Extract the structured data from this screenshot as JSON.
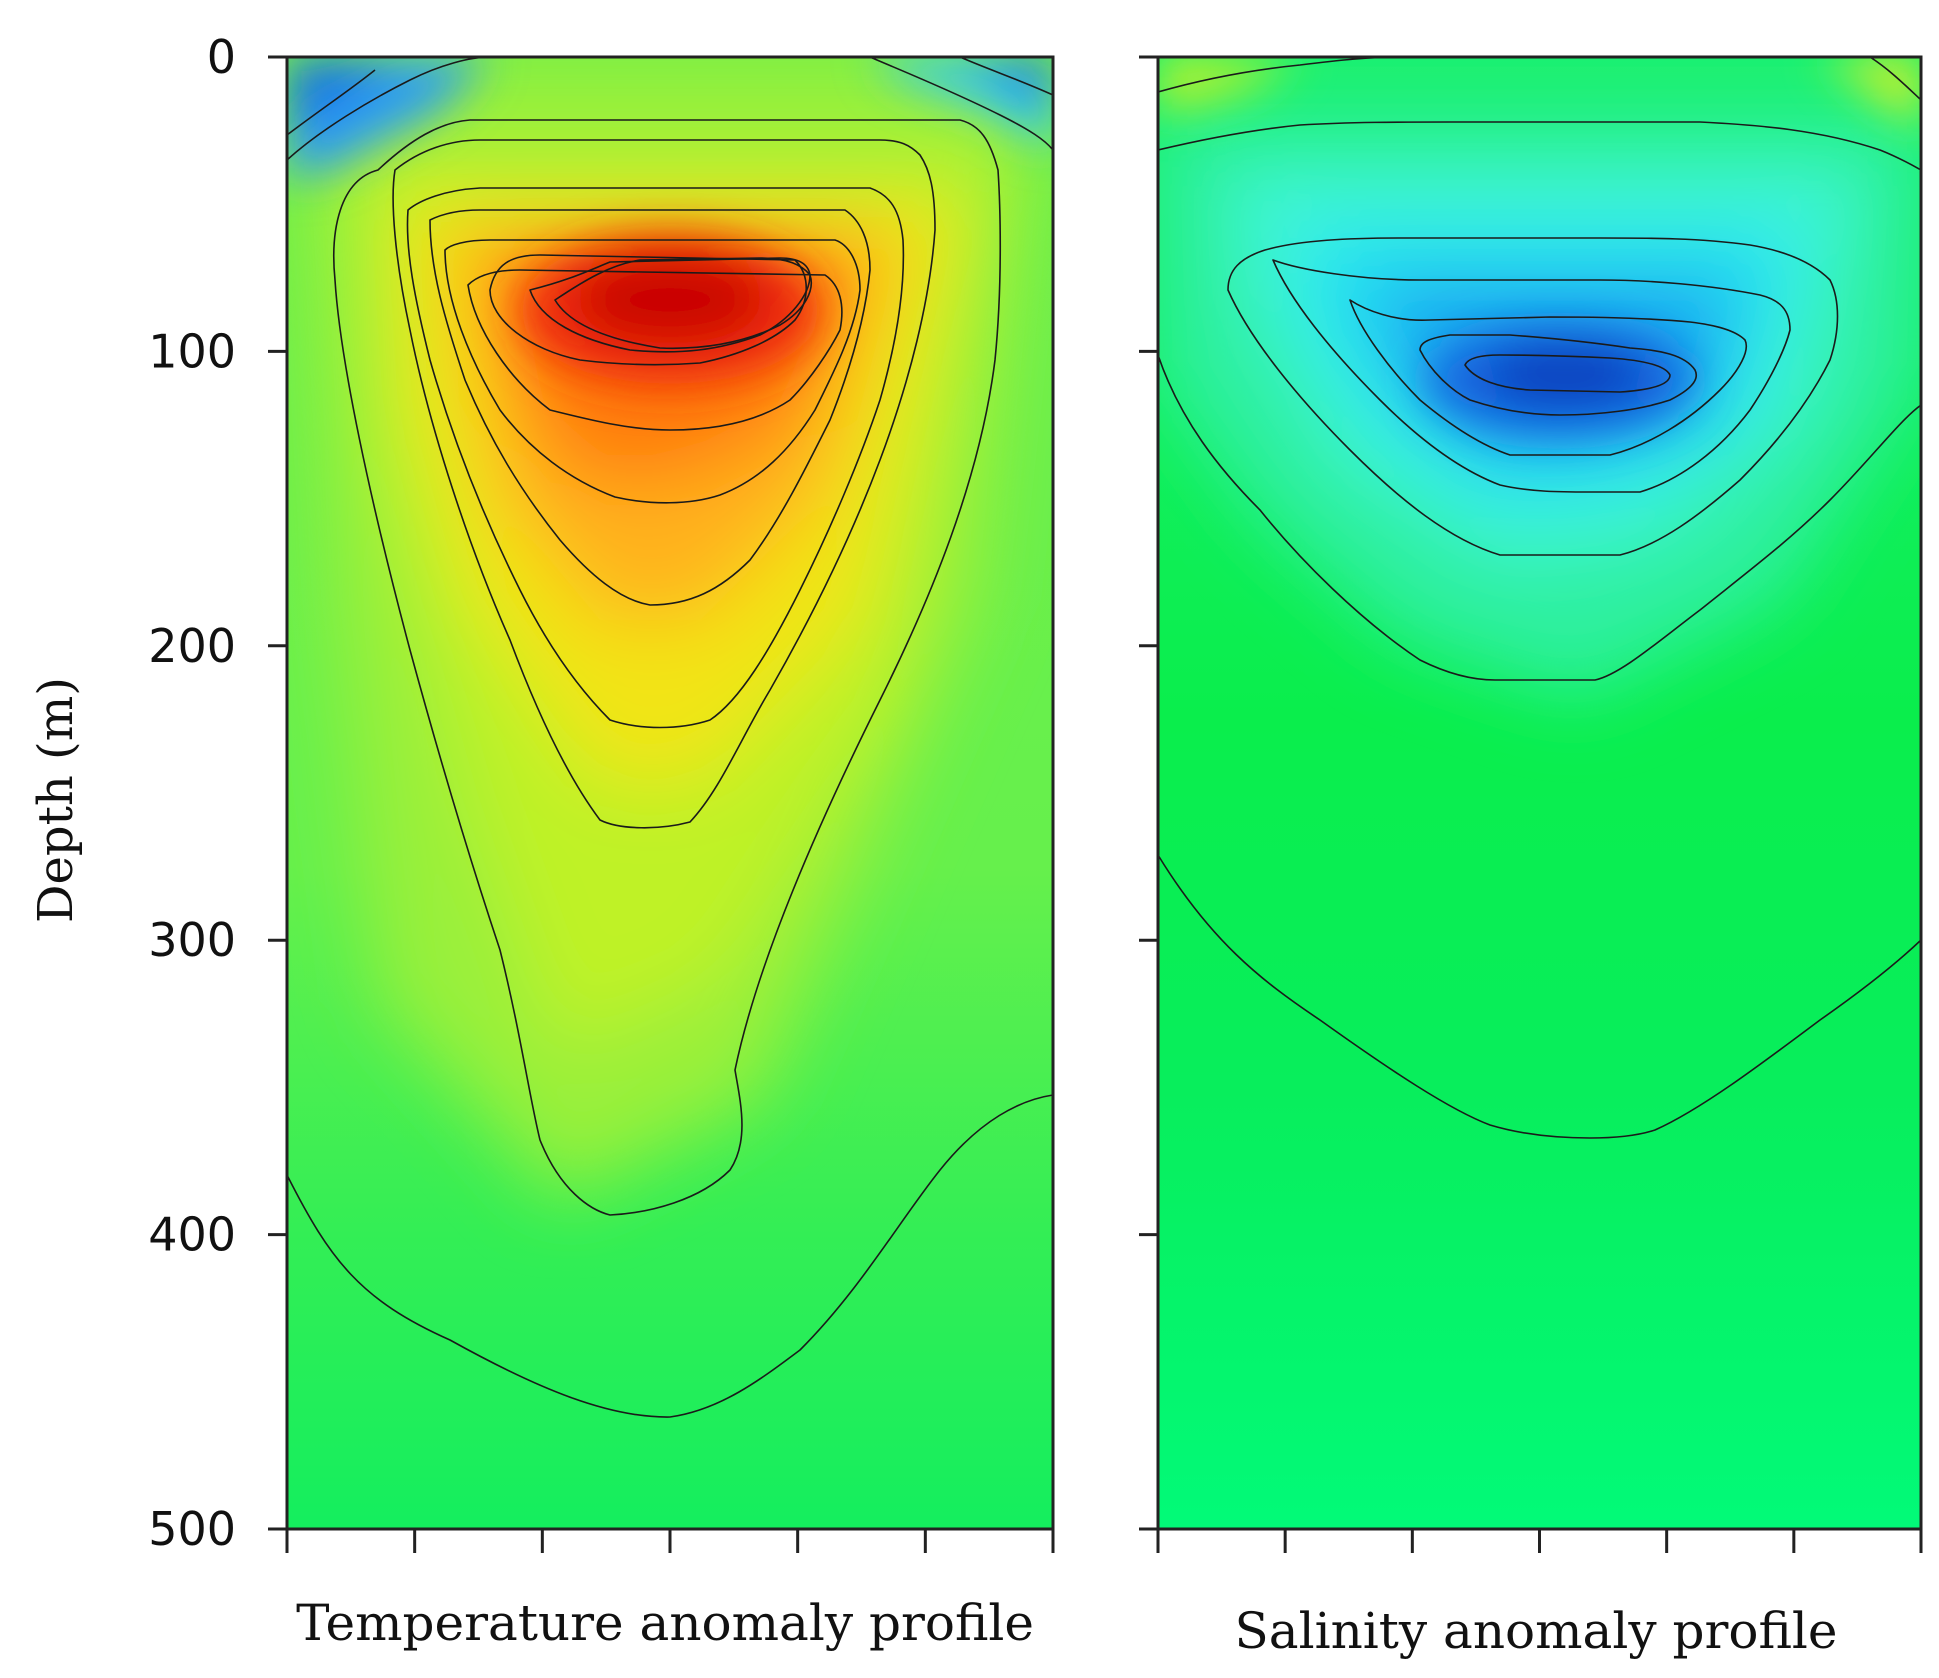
{
  "chart_data": [
    {
      "type": "heatmap",
      "title": "Temperature anomaly profile",
      "xlabel": "Temperature anomaly profile",
      "ylabel": "Depth (m)",
      "ylim": [
        0,
        500
      ],
      "y_ticks": [
        "0",
        "100",
        "200",
        "300",
        "400",
        "500"
      ],
      "x_tick_count": 7,
      "x_tick_labels": [],
      "colormap": "jet",
      "peak_anomaly": "warm core near 80-100 m depth",
      "contours": true
    },
    {
      "type": "heatmap",
      "title": "Salinity anomaly profile",
      "xlabel": "Salinity anomaly profile",
      "ylabel": "",
      "ylim": [
        0,
        500
      ],
      "y_ticks": [],
      "x_tick_count": 7,
      "x_tick_labels": [],
      "colormap": "jet",
      "peak_anomaly": "fresh core near 100-110 m depth",
      "contours": true
    }
  ],
  "labels": {
    "ylabel": "Depth (m)",
    "left_title": "Temperature anomaly profile",
    "right_title": "Salinity anomaly profile"
  },
  "y_ticks": [
    "0",
    "100",
    "200",
    "300",
    "400",
    "500"
  ]
}
